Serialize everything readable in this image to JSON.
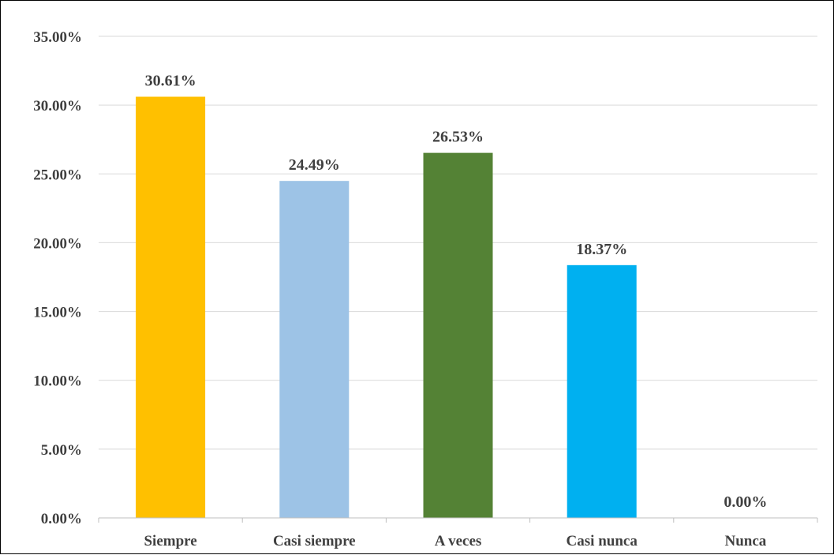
{
  "chart_data": {
    "type": "bar",
    "title": "",
    "xlabel": "",
    "ylabel": "",
    "categories": [
      "Siempre",
      "Casi siempre",
      "A veces",
      "Casi nunca",
      "Nunca"
    ],
    "values": [
      30.61,
      24.49,
      26.53,
      18.37,
      0.0
    ],
    "data_labels": [
      "30.61%",
      "24.49%",
      "26.53%",
      "18.37%",
      "0.00%"
    ],
    "colors": [
      "#FFC000",
      "#9DC3E6",
      "#548235",
      "#00B0F0",
      "#A6A6A6"
    ],
    "ylim": [
      0,
      35
    ],
    "yticks": [
      0,
      5,
      10,
      15,
      20,
      25,
      30,
      35
    ],
    "ytick_labels": [
      "0.00%",
      "5.00%",
      "10.00%",
      "15.00%",
      "20.00%",
      "25.00%",
      "30.00%",
      "35.00%"
    ],
    "grid": true,
    "legend": "none"
  }
}
